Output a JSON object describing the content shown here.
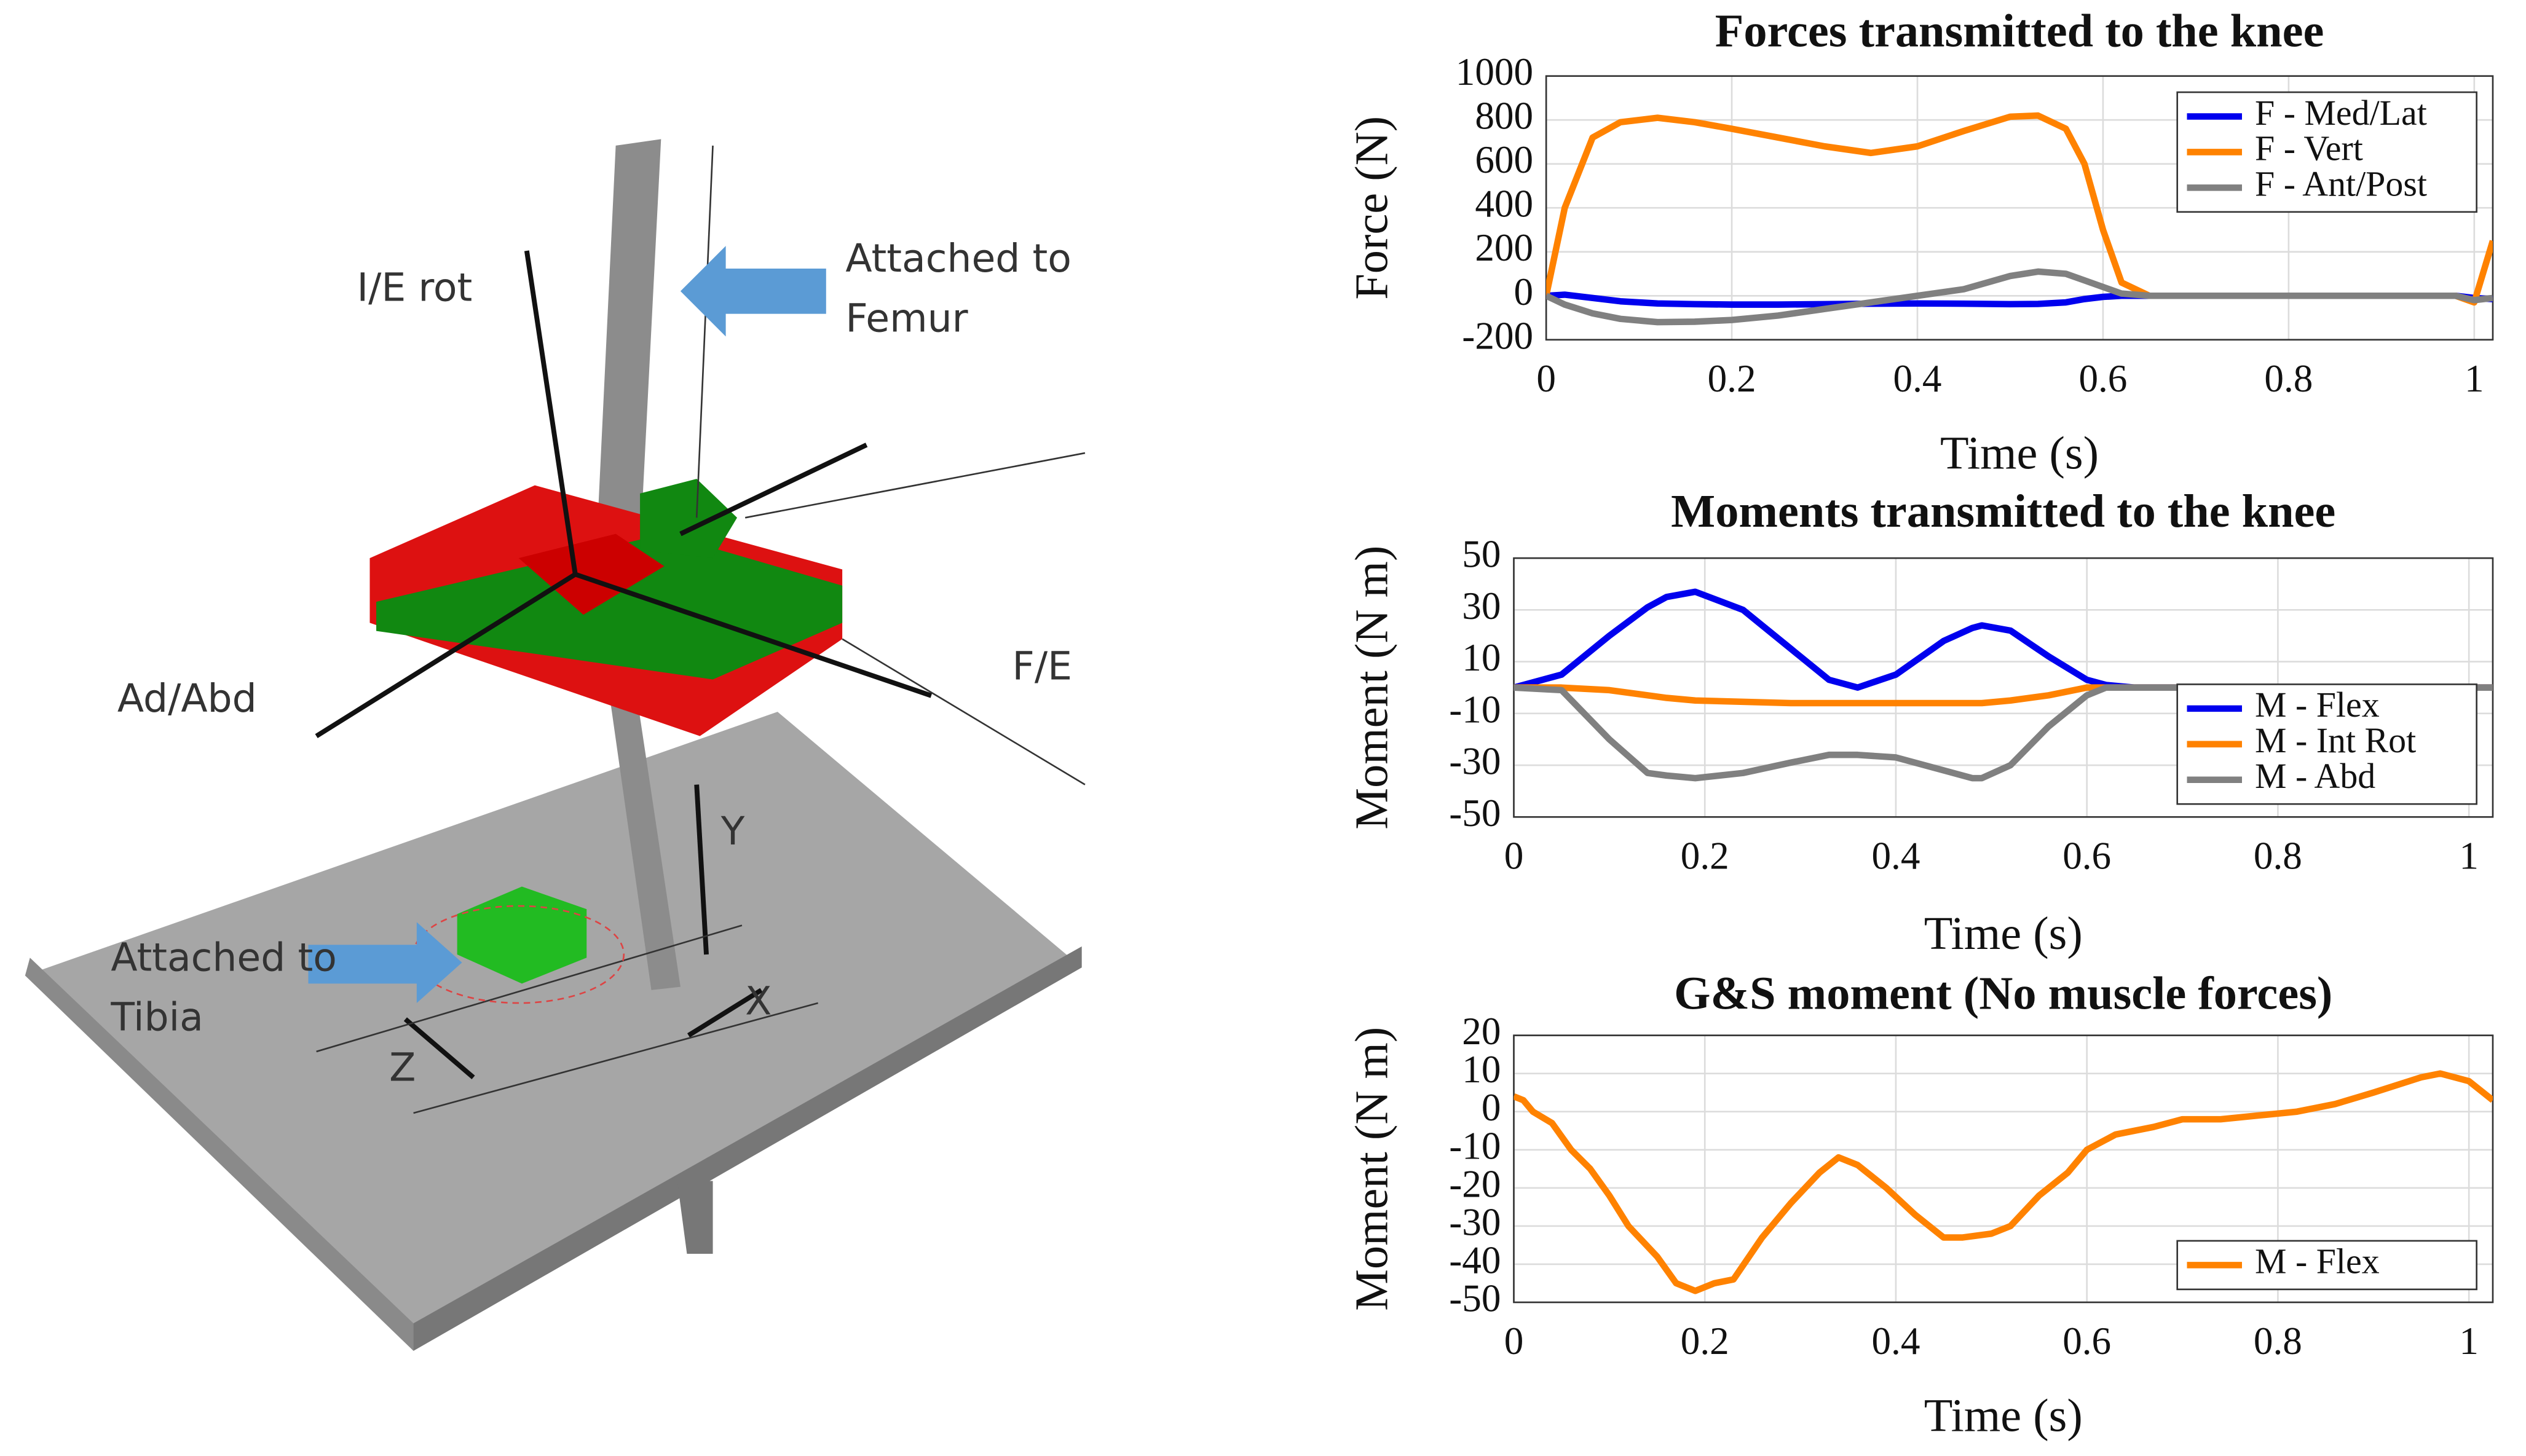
{
  "diagram": {
    "labels": [
      "I/E rot",
      "Attached to",
      "Femur",
      "F/E",
      "Ad/Abd",
      "Attached to",
      "Tibia",
      "Y",
      "X",
      "Z"
    ]
  },
  "chart_data": [
    {
      "type": "line",
      "title": "Forces transmitted to the knee",
      "x_label": "Time (s)",
      "y_label": "Force (N)",
      "x": [
        0,
        0.02,
        0.05,
        0.08,
        0.12,
        0.16,
        0.2,
        0.25,
        0.3,
        0.35,
        0.4,
        0.45,
        0.5,
        0.53,
        0.56,
        0.58,
        0.6,
        0.62,
        0.65,
        0.7,
        0.8,
        0.9,
        0.98,
        1.0,
        1.02
      ],
      "series": [
        {
          "name": "F - Med/Lat",
          "color": "#0000ee",
          "values": [
            0,
            5,
            -10,
            -25,
            -35,
            -38,
            -40,
            -40,
            -38,
            -36,
            -35,
            -36,
            -38,
            -37,
            -30,
            -15,
            -5,
            0,
            0,
            0,
            0,
            0,
            0,
            -10,
            -15
          ]
        },
        {
          "name": "F - Vert",
          "color": "#ff8200",
          "values": [
            0,
            400,
            720,
            790,
            810,
            790,
            760,
            720,
            680,
            650,
            680,
            750,
            815,
            820,
            760,
            600,
            300,
            60,
            0,
            0,
            0,
            0,
            0,
            -30,
            250
          ]
        },
        {
          "name": "F - Ant/Post",
          "color": "#808080",
          "values": [
            0,
            -40,
            -80,
            -105,
            -120,
            -118,
            -110,
            -90,
            -60,
            -30,
            0,
            30,
            90,
            110,
            100,
            70,
            40,
            10,
            0,
            0,
            0,
            0,
            0,
            -20,
            -10
          ]
        }
      ],
      "xlim": [
        0,
        1.02
      ],
      "xticks": [
        0,
        0.2,
        0.4,
        0.6,
        0.8,
        1
      ],
      "ylim": [
        -200,
        1000
      ],
      "yticks": [
        -200,
        0,
        200,
        400,
        600,
        800,
        1000
      ],
      "grid": true,
      "legend": "upper-right"
    },
    {
      "type": "line",
      "title": "Moments transmitted to the knee",
      "x_label": "Time (s)",
      "y_label": "Moment (N m)",
      "x": [
        0,
        0.05,
        0.1,
        0.14,
        0.16,
        0.19,
        0.24,
        0.29,
        0.33,
        0.36,
        0.4,
        0.45,
        0.48,
        0.49,
        0.52,
        0.56,
        0.6,
        0.62,
        0.65,
        0.8,
        1.025
      ],
      "series": [
        {
          "name": "M - Flex",
          "color": "#0000ee",
          "values": [
            0,
            5,
            20,
            31,
            35,
            37,
            30,
            15,
            3,
            0,
            5,
            18,
            23,
            24,
            22,
            12,
            3,
            1,
            0,
            0,
            0
          ]
        },
        {
          "name": "M - Int Rot",
          "color": "#ff8200",
          "values": [
            0,
            0,
            -1,
            -3,
            -4,
            -5,
            -5.5,
            -6,
            -6,
            -6,
            -6,
            -6,
            -6,
            -6,
            -5,
            -3,
            0,
            0,
            0,
            0,
            0
          ]
        },
        {
          "name": "M - Abd",
          "color": "#808080",
          "values": [
            0,
            -1,
            -20,
            -33,
            -34,
            -35,
            -33,
            -29,
            -26,
            -26,
            -27,
            -32,
            -35,
            -35,
            -30,
            -15,
            -3,
            0,
            0,
            0,
            0
          ]
        }
      ],
      "xlim": [
        0,
        1.025
      ],
      "xticks": [
        0,
        0.2,
        0.4,
        0.6,
        0.8,
        1
      ],
      "ylim": [
        -50,
        50
      ],
      "yticks": [
        -50,
        -30,
        -10,
        10,
        30,
        50
      ],
      "grid": true,
      "legend": "lower-right"
    },
    {
      "type": "line",
      "title": "G&S moment (No muscle forces)",
      "x_label": "Time (s)",
      "y_label": "Moment (N m)",
      "x": [
        0,
        0.01,
        0.02,
        0.04,
        0.06,
        0.08,
        0.1,
        0.12,
        0.15,
        0.17,
        0.19,
        0.21,
        0.23,
        0.26,
        0.29,
        0.32,
        0.34,
        0.36,
        0.39,
        0.42,
        0.45,
        0.47,
        0.5,
        0.52,
        0.55,
        0.58,
        0.6,
        0.63,
        0.67,
        0.7,
        0.74,
        0.78,
        0.82,
        0.86,
        0.9,
        0.95,
        0.97,
        1.0,
        1.025
      ],
      "series": [
        {
          "name": "M - Flex",
          "color": "#ff8200",
          "values": [
            4,
            3,
            0,
            -3,
            -10,
            -15,
            -22,
            -30,
            -38,
            -45,
            -47,
            -45,
            -44,
            -33,
            -24,
            -16,
            -12,
            -14,
            -20,
            -27,
            -33,
            -33,
            -32,
            -30,
            -22,
            -16,
            -10,
            -6,
            -4,
            -2,
            -2,
            -1,
            0,
            2,
            5,
            9,
            10,
            8,
            3
          ]
        }
      ],
      "xlim": [
        0,
        1.025
      ],
      "xticks": [
        0,
        0.2,
        0.4,
        0.6,
        0.8,
        1
      ],
      "ylim": [
        -50,
        20
      ],
      "yticks": [
        -50,
        -40,
        -30,
        -20,
        -10,
        0,
        10,
        20
      ],
      "grid": true,
      "legend": "lower-right"
    }
  ]
}
